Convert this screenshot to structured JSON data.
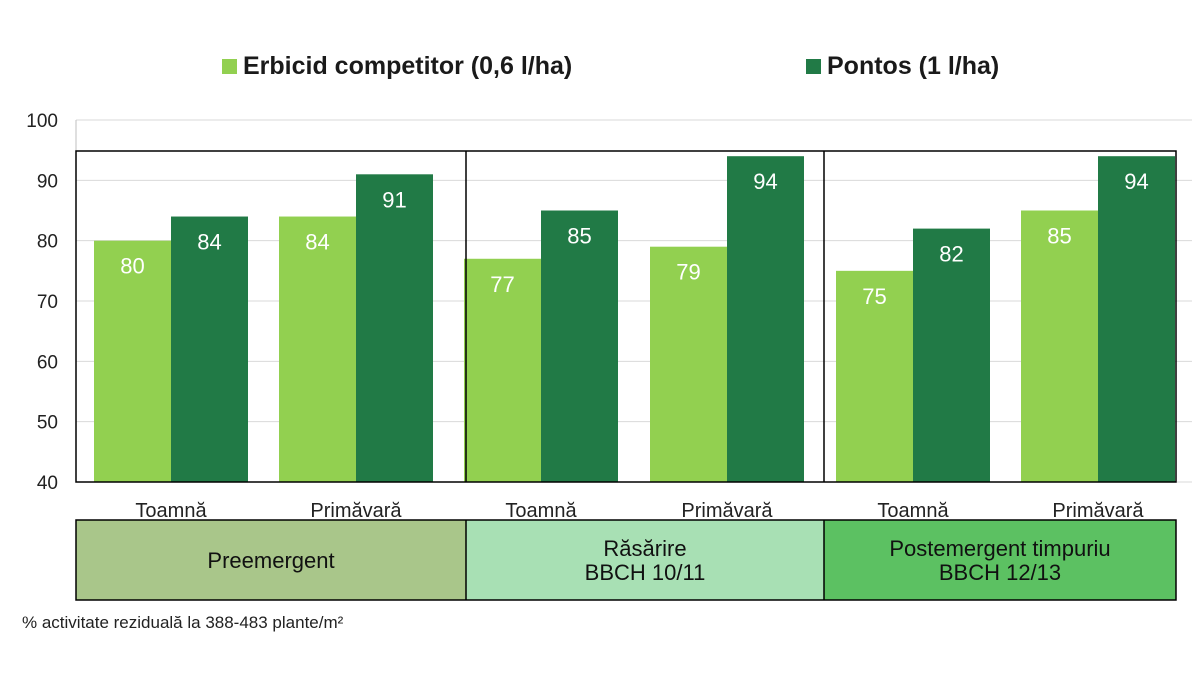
{
  "chart_data": {
    "type": "bar",
    "ylim": [
      40,
      100
    ],
    "yticks": [
      40,
      50,
      60,
      70,
      80,
      90,
      100
    ],
    "grid": true,
    "legend_position": "top",
    "colors": {
      "light": "#92d050",
      "dark": "#217a46"
    },
    "series": [
      {
        "name": "Erbicid competitor (0,6 l/ha)",
        "values": [
          80,
          84,
          77,
          79,
          75,
          85
        ]
      },
      {
        "name": "Pontos (1 l/ha)",
        "values": [
          84,
          91,
          85,
          94,
          82,
          94
        ]
      }
    ],
    "categories": [
      "Toamnă",
      "Primăvară",
      "Toamnă",
      "Primăvară",
      "Toamnă",
      "Primăvară"
    ],
    "groups": [
      {
        "label_lines": [
          "Preemergent"
        ],
        "color": "#a9c68a"
      },
      {
        "label_lines": [
          "Răsărire",
          "BBCH 10/11"
        ],
        "color": "#a8e0b4"
      },
      {
        "label_lines": [
          "Postemergent timpuriu",
          "BBCH 12/13"
        ],
        "color": "#5cc162"
      }
    ],
    "footnote": "% activitate reziduală la 388-483 plante/m²"
  }
}
